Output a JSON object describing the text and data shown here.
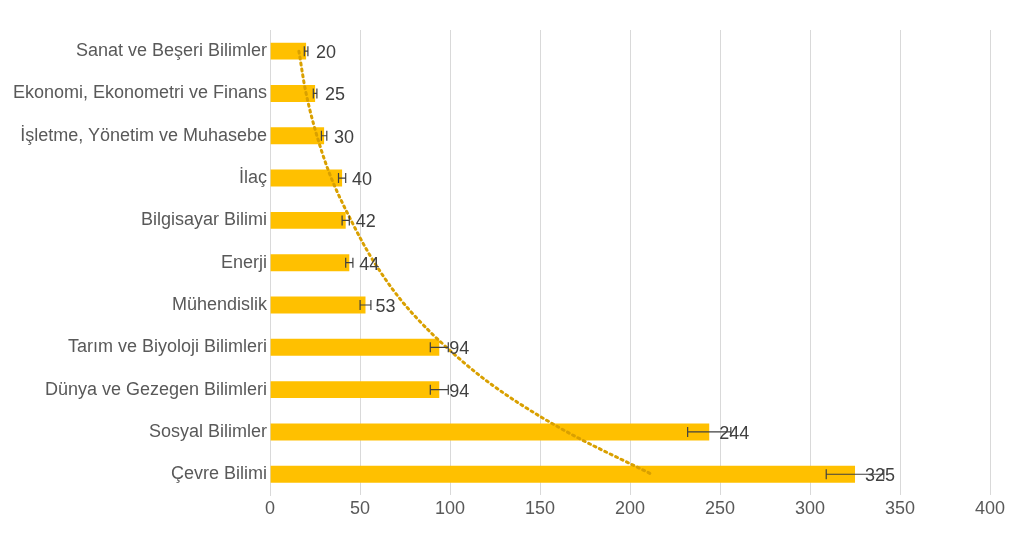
{
  "chart_data": {
    "type": "bar",
    "orientation": "horizontal",
    "categories": [
      "Sanat ve Beşeri Bilimler",
      "Ekonomi, Ekonometri ve Finans",
      "İşletme, Yönetim ve Muhasebe",
      "İlaç",
      "Bilgisayar Bilimi",
      "Enerji",
      "Mühendislik",
      "Tarım ve Biyoloji Bilimleri",
      "Dünya ve Gezegen Bilimleri",
      "Sosyal Bilimler",
      "Çevre Bilimi"
    ],
    "series": [
      {
        "color": "#ffc000",
        "values": [
          20,
          25,
          30,
          40,
          42,
          44,
          53,
          94,
          94,
          244,
          325
        ],
        "errors": [
          1,
          1,
          1.5,
          2,
          2,
          2,
          3,
          5,
          5,
          12,
          16
        ],
        "value_labels": [
          "20",
          "25",
          "30",
          "40",
          "42",
          "44",
          "53",
          "94",
          "94",
          "244",
          "325"
        ]
      },
      {
        "type": "line",
        "color": "#d9a000",
        "line_style": "dotted",
        "marker": "none",
        "values": [
          16,
          20,
          26,
          34,
          45,
          58,
          75,
          98,
          127,
          165,
          212
        ]
      }
    ],
    "xlim": [
      0,
      400
    ],
    "xticks": [
      0,
      50,
      100,
      150,
      200,
      250,
      300,
      350,
      400
    ],
    "grid": "x",
    "legend": false
  }
}
